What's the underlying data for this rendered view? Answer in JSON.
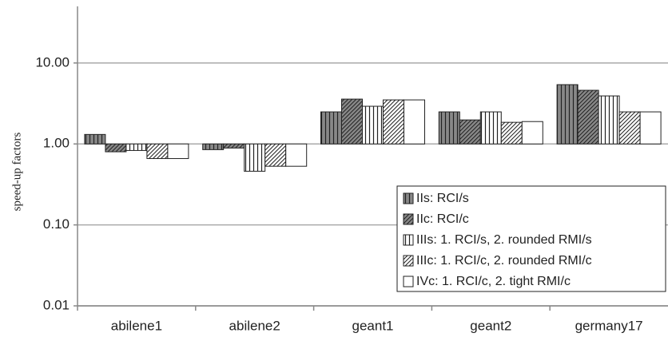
{
  "chart_data": {
    "type": "bar",
    "y_label": "speed-up factors",
    "log_scale": true,
    "grid": true,
    "legend": "lower right",
    "baseline": 1,
    "categories": [
      "abilene1",
      "abilene2",
      "geant1",
      "geant2",
      "germany17"
    ],
    "series": [
      {
        "name": "IIs: RCI/s",
        "color": "#888888",
        "pattern": "vertical",
        "values": [
          1.31,
          0.85,
          2.49,
          2.49,
          5.4
        ]
      },
      {
        "name": "IIc: RCI/c",
        "color": "#888888",
        "pattern": "diagonal",
        "values": [
          0.8,
          0.89,
          3.58,
          1.98,
          4.6
        ]
      },
      {
        "name": "IIIs: 1. RCI/s, 2. rounded RMI/s",
        "color": "#ffffff",
        "pattern": "vertical",
        "values": [
          0.83,
          0.46,
          2.92,
          2.49,
          3.92
        ]
      },
      {
        "name": "IIIc: 1. RCI/c, 2. rounded RMI/c",
        "color": "#ffffff",
        "pattern": "diagonal",
        "values": [
          0.66,
          0.53,
          3.5,
          1.85,
          2.49
        ]
      },
      {
        "name": "IVc: 1. RCI/c, 2. tight RMI/c",
        "color": "#ffffff",
        "pattern": "none",
        "values": [
          0.66,
          0.53,
          3.5,
          1.89,
          2.49
        ]
      }
    ],
    "ylim": [
      0.01,
      50
    ],
    "yticks": [
      {
        "value": 0.01,
        "label": "0.01"
      },
      {
        "value": 0.1,
        "label": "0.10"
      },
      {
        "value": 1,
        "label": "1.00"
      },
      {
        "value": 10,
        "label": "10.00"
      }
    ]
  }
}
